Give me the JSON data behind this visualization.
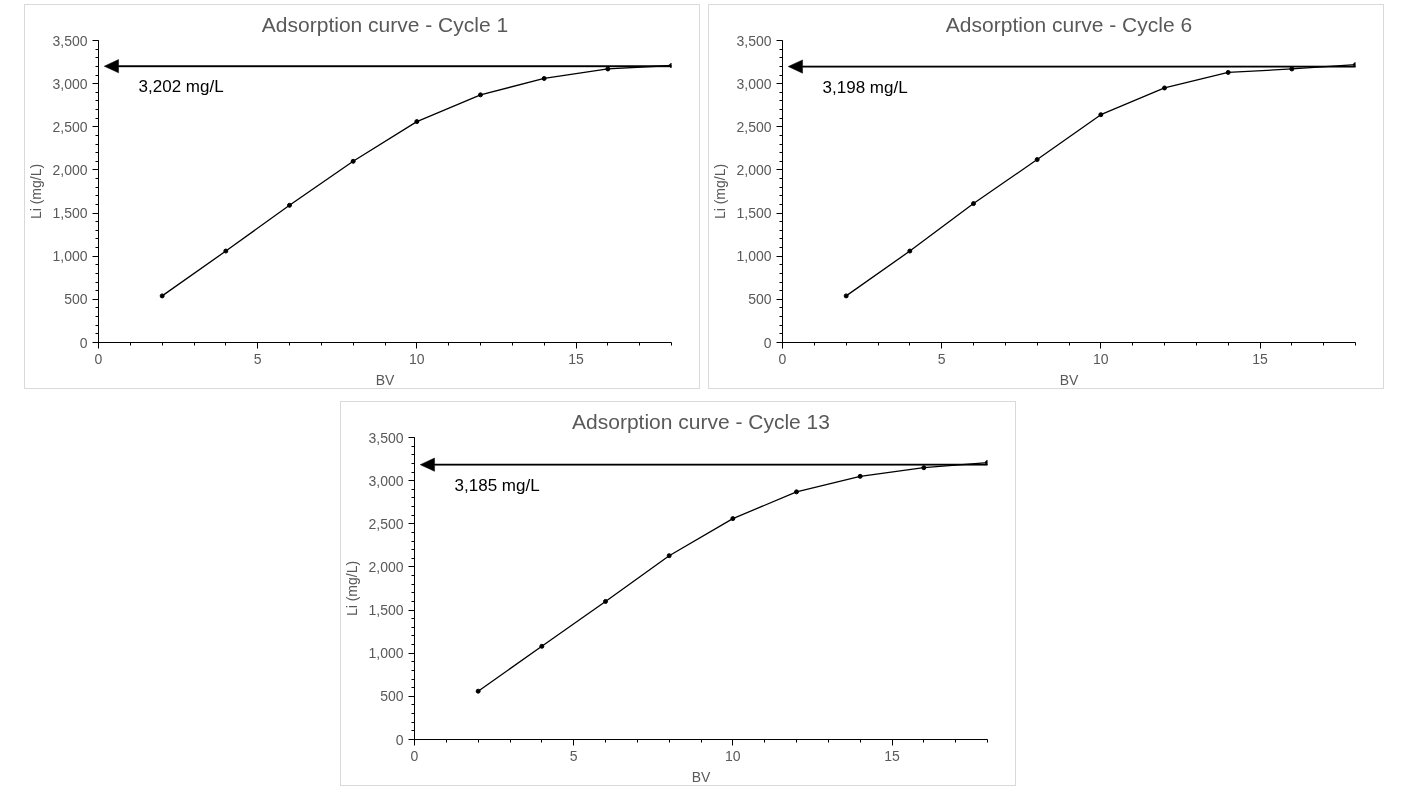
{
  "chart_data": [
    {
      "type": "line",
      "title": "Adsorption curve - Cycle 1",
      "xlabel": "BV",
      "ylabel": "Li (mg/L)",
      "x": [
        2,
        4,
        6,
        8,
        10,
        12,
        14,
        16,
        18
      ],
      "series": [
        {
          "color": "#000000",
          "values": [
            540,
            1060,
            1590,
            2100,
            2560,
            2870,
            3060,
            3170,
            3210
          ]
        }
      ],
      "marker": "circle",
      "line_style": "solid",
      "grid": false,
      "xlim": [
        0,
        18
      ],
      "xticks": [
        0,
        5,
        10,
        15
      ],
      "ylim": [
        0,
        3500
      ],
      "yticks": [
        0,
        500,
        {
          "value": 1000,
          "label": "1,000"
        },
        {
          "value": 1500,
          "label": "1,500"
        },
        {
          "value": 2000,
          "label": "2,000"
        },
        {
          "value": 2500,
          "label": "2,500"
        },
        {
          "value": 3000,
          "label": "3,000"
        },
        {
          "value": 3500,
          "label": "3,500"
        }
      ],
      "ref_lines": [
        {
          "axis": "y",
          "value": 3202,
          "label": "3,202 mg/L",
          "color": "#000000"
        }
      ]
    },
    {
      "type": "line",
      "title": "Adsorption curve - Cycle 6",
      "xlabel": "BV",
      "ylabel": "Li (mg/L)",
      "x": [
        2,
        4,
        6,
        8,
        10,
        12,
        14,
        16,
        18
      ],
      "series": [
        {
          "color": "#000000",
          "values": [
            540,
            1060,
            1610,
            2120,
            2640,
            2950,
            3130,
            3170,
            3220
          ]
        }
      ],
      "marker": "circle",
      "line_style": "solid",
      "grid": false,
      "xlim": [
        0,
        18
      ],
      "xticks": [
        0,
        5,
        10,
        15
      ],
      "ylim": [
        0,
        3500
      ],
      "yticks": [
        0,
        500,
        {
          "value": 1000,
          "label": "1,000"
        },
        {
          "value": 1500,
          "label": "1,500"
        },
        {
          "value": 2000,
          "label": "2,000"
        },
        {
          "value": 2500,
          "label": "2,500"
        },
        {
          "value": 3000,
          "label": "3,000"
        },
        {
          "value": 3500,
          "label": "3,500"
        }
      ],
      "ref_lines": [
        {
          "axis": "y",
          "value": 3198,
          "label": "3,198 mg/L",
          "color": "#000000"
        }
      ]
    },
    {
      "type": "line",
      "title": "Adsorption curve - Cycle 13",
      "xlabel": "BV",
      "ylabel": "Li (mg/L)",
      "x": [
        2,
        4,
        6,
        8,
        10,
        12,
        14,
        16,
        18
      ],
      "series": [
        {
          "color": "#000000",
          "values": [
            560,
            1080,
            1600,
            2130,
            2560,
            2870,
            3050,
            3150,
            3210
          ]
        }
      ],
      "marker": "circle",
      "line_style": "solid",
      "grid": false,
      "xlim": [
        0,
        18
      ],
      "xticks": [
        0,
        5,
        10,
        15
      ],
      "ylim": [
        0,
        3500
      ],
      "yticks": [
        0,
        500,
        {
          "value": 1000,
          "label": "1,000"
        },
        {
          "value": 1500,
          "label": "1,500"
        },
        {
          "value": 2000,
          "label": "2,000"
        },
        {
          "value": 2500,
          "label": "2,500"
        },
        {
          "value": 3000,
          "label": "3,000"
        },
        {
          "value": 3500,
          "label": "3,500"
        }
      ],
      "ref_lines": [
        {
          "axis": "y",
          "value": 3185,
          "label": "3,185 mg/L",
          "color": "#000000"
        }
      ]
    }
  ]
}
